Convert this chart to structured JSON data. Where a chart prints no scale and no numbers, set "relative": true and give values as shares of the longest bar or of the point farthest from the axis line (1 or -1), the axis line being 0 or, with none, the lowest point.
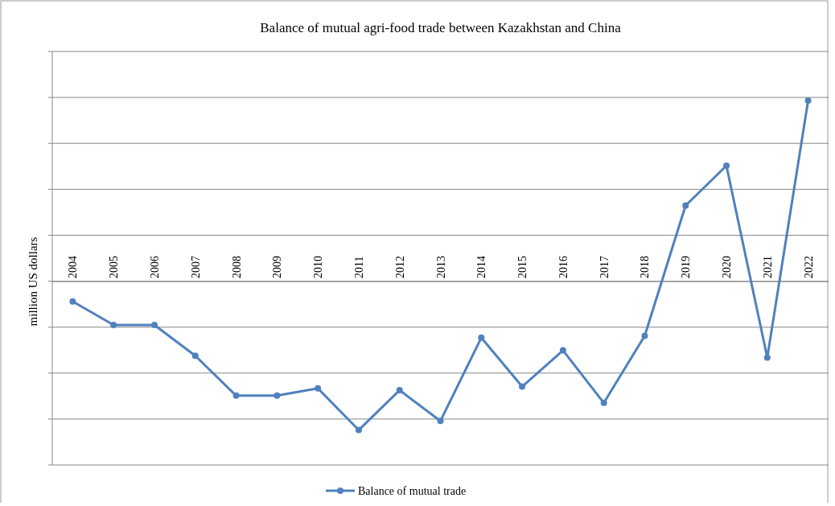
{
  "chart_data": {
    "type": "line",
    "title": "Balance of mutual agri-food trade between Kazakhstan and China",
    "ylabel": "million US dollars",
    "relative": true,
    "categories": [
      "2004",
      "2005",
      "2006",
      "2007",
      "2008",
      "2009",
      "2010",
      "2011",
      "2012",
      "2013",
      "2014",
      "2015",
      "2016",
      "2017",
      "2018",
      "2019",
      "2020",
      "2021",
      "2022"
    ],
    "series": [
      {
        "name": "Balance of mutual trade",
        "color": "#4f81bd",
        "values": [
          -0.11,
          -0.24,
          -0.24,
          -0.41,
          -0.63,
          -0.63,
          -0.59,
          -0.82,
          -0.6,
          -0.77,
          -0.31,
          -0.58,
          -0.38,
          -0.67,
          -0.3,
          0.42,
          0.64,
          -0.42,
          1
        ]
      }
    ],
    "grid": "y",
    "legend": "bottom",
    "marker": "circle",
    "line_style": "solid"
  }
}
